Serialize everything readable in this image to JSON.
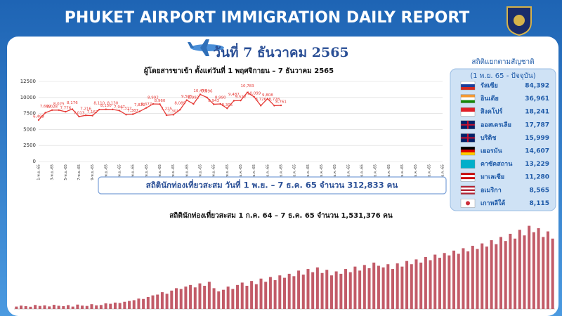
{
  "header": {
    "title": "PHUKET AIRPORT IMMIGRATION DAILY REPORT",
    "date": "วันที่ 7 ธันวาคม 2565"
  },
  "summary": "สถิตินักท่องเที่ยวสะสม วันที่ 1 พ.ย. – 7 ธ.ค. 65 จำนวน 312,833 คน",
  "nationality_panel": {
    "title": "สถิติแยกตามสัญชาติ",
    "subtitle": "(1 พ.ย. 65 - ปัจจุบัน)",
    "rows": [
      {
        "name": "รัสเซีย",
        "value": "84,392"
      },
      {
        "name": "อินเดีย",
        "value": "36,961"
      },
      {
        "name": "สิงคโปร์",
        "value": "18,241"
      },
      {
        "name": "ออสเตรเลีย",
        "value": "17,787"
      },
      {
        "name": "บริติช",
        "value": "15,999"
      },
      {
        "name": "เยอรมัน",
        "value": "14,607"
      },
      {
        "name": "คาซัคสถาน",
        "value": "13,229"
      },
      {
        "name": "มาเลเซีย",
        "value": "11,280"
      },
      {
        "name": "อเมริกา",
        "value": "8,565"
      },
      {
        "name": "เกาหลีใต้",
        "value": "8,115"
      }
    ]
  },
  "chart_data": [
    {
      "type": "line",
      "title": "ผู้โดยสารขาเข้า ตั้งแต่วันที่ 1 พฤศจิกายน – 7 ธันวาคม 2565",
      "categories": [
        "1-พ.ย.-65",
        null,
        "3-พ.ย.-65",
        null,
        "5-พ.ย.-65",
        null,
        "7-พ.ย.-65",
        null,
        "9-พ.ย.-65",
        null,
        "11-พ.ย.-65",
        null,
        "13-พ.ย.-65",
        null,
        "15-พ.ย.-65",
        null,
        "17-พ.ย.-65",
        null,
        "19-พ.ย.-65",
        null,
        "21-พ.ย.-65",
        null,
        "23-พ.ย.-65",
        null,
        "25-พ.ย.-65",
        null,
        "27-พ.ย.-65",
        null,
        "29-พ.ย.-65",
        null,
        "1-ธ.ค.-65",
        null,
        "3-ธ.ค.-65",
        null,
        "5-ธ.ค.-65",
        null,
        "7-ธ.ค.-65",
        null,
        "9-ธ.ค.-65",
        null,
        "11-ธ.ค.-65",
        null,
        "13-ธ.ค.-65",
        null,
        "15-ธ.ค.-65",
        null,
        "17-ธ.ค.-65",
        null,
        "19-ธ.ค.-65",
        null,
        "21-ธ.ค.-65",
        null,
        "23-ธ.ค.-65",
        null,
        "25-ธ.ค.-65",
        null,
        "27-ธ.ค.-65",
        null,
        "29-ธ.ค.-65",
        null,
        "31-ธ.ค.-65"
      ],
      "series": [
        {
          "name": "ผู้โดยสารขาเข้า",
          "color": "#e53935",
          "values": [
            6489,
            7609,
            8028,
            8025,
            7776,
            8176,
            7013,
            7216,
            7167,
            8110,
            8150,
            8130,
            7947,
            7317,
            7387,
            7820,
            8377,
            8992,
            8960,
            7225,
            7301,
            8089,
            9585,
            8992,
            10476,
            9996,
            8943,
            8990,
            8305,
            9487,
            9522,
            10783,
            10099,
            8726,
            9808,
            8728,
            8761,
            null,
            null,
            null,
            null,
            null,
            null,
            null,
            null,
            null,
            null,
            null,
            null,
            null,
            null,
            null,
            null,
            null,
            null,
            null,
            null,
            null,
            null,
            null,
            null
          ],
          "value_labels": [
            "6,489",
            "7,609",
            "8,028",
            "8,025",
            "7,776",
            "8,176",
            "7,013",
            "7,216",
            "7,167",
            "8,110",
            "8,150",
            "8,130",
            "7,947",
            "7,317",
            "7,387",
            "7,820",
            "8,377",
            "8,992",
            "8,960",
            "7,225",
            "7,301",
            "8,089",
            "9,585",
            "8,992",
            "10,476",
            "9,996",
            "8,943",
            "8,990",
            "8,305",
            "9,487",
            "9,522",
            "10,783",
            "10,099",
            "8,726",
            "9,808",
            "8,728",
            "8,761",
            null,
            null,
            null,
            null,
            null,
            null,
            null,
            null,
            null,
            null,
            null,
            null,
            null,
            null,
            null,
            null,
            null,
            null,
            null,
            null,
            null,
            null,
            null,
            null
          ]
        }
      ],
      "ylim": [
        0,
        12500
      ],
      "yticks": [
        0,
        2500,
        5000,
        7500,
        10000,
        12500
      ],
      "grid": true
    },
    {
      "type": "bar",
      "title": "สถิตินักท่องเที่ยวสะสม 1 ก.ค. 64 – 7 ธ.ค. 65 จำนวน 1,531,376 คน",
      "color": "#c25b68",
      "values": [
        300,
        420,
        350,
        280,
        500,
        380,
        450,
        320,
        520,
        400,
        360,
        480,
        300,
        550,
        420,
        380,
        600,
        450,
        500,
        700,
        650,
        800,
        750,
        900,
        1000,
        1100,
        1300,
        1250,
        1500,
        1700,
        1800,
        2100,
        1900,
        2300,
        2600,
        2500,
        2800,
        3000,
        2700,
        3200,
        2900,
        3400,
        2600,
        2200,
        2400,
        2800,
        2500,
        3000,
        3300,
        2900,
        3500,
        3100,
        3800,
        3400,
        4000,
        3600,
        4200,
        3900,
        4400,
        4100,
        4800,
        4300,
        5000,
        4600,
        5200,
        4500,
        4900,
        4200,
        4700,
        4400,
        5000,
        4600,
        5300,
        4800,
        5500,
        5100,
        5800,
        5400,
        5200,
        5600,
        5000,
        5700,
        5300,
        6000,
        5600,
        6200,
        5800,
        6500,
        6100,
        6800,
        6400,
        7000,
        6700,
        7300,
        6900,
        7600,
        7200,
        7900,
        7500,
        8200,
        7800,
        8600,
        8100,
        9000,
        8500,
        9400,
        8800,
        9900,
        9200,
        10400,
        9600,
        10100,
        9000,
        9700,
        8800
      ]
    }
  ]
}
